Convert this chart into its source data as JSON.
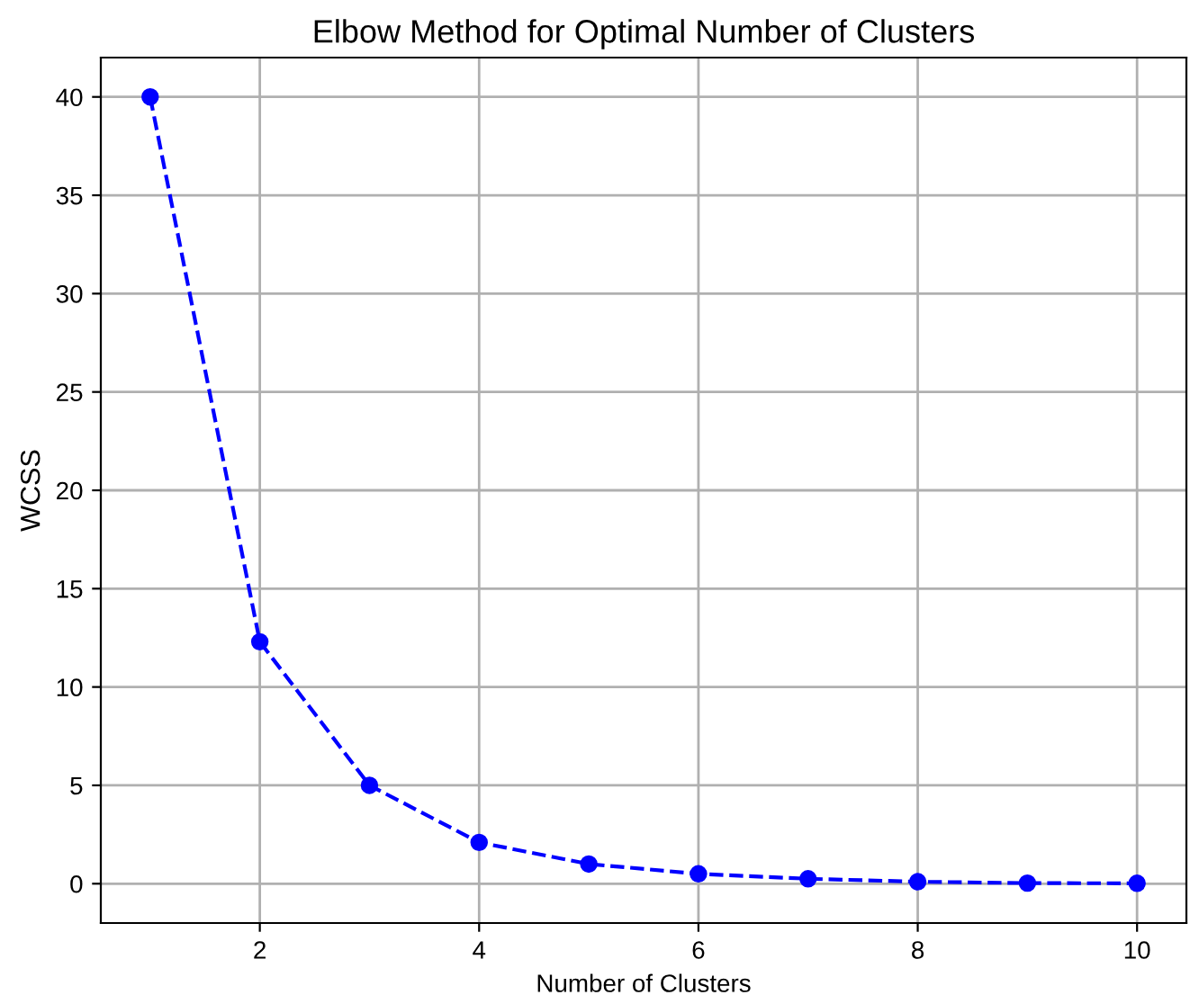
{
  "chart_data": {
    "type": "line",
    "title": "Elbow Method for Optimal Number of Clusters",
    "xlabel": "Number of Clusters",
    "ylabel": "WCSS",
    "x": [
      1,
      2,
      3,
      4,
      5,
      6,
      7,
      8,
      9,
      10
    ],
    "series": [
      {
        "color": "#0000ff",
        "values": [
          40.0,
          12.3,
          5.0,
          2.1,
          1.0,
          0.5,
          0.25,
          0.1,
          0.03,
          0.02
        ]
      }
    ],
    "xlim": [
      0.55,
      10.45
    ],
    "ylim": [
      -2,
      42
    ],
    "xticks": [
      2,
      4,
      6,
      8,
      10
    ],
    "yticks": [
      0,
      5,
      10,
      15,
      20,
      25,
      30,
      35,
      40
    ],
    "grid": true,
    "marker": "circle",
    "line_style": "dashed"
  }
}
